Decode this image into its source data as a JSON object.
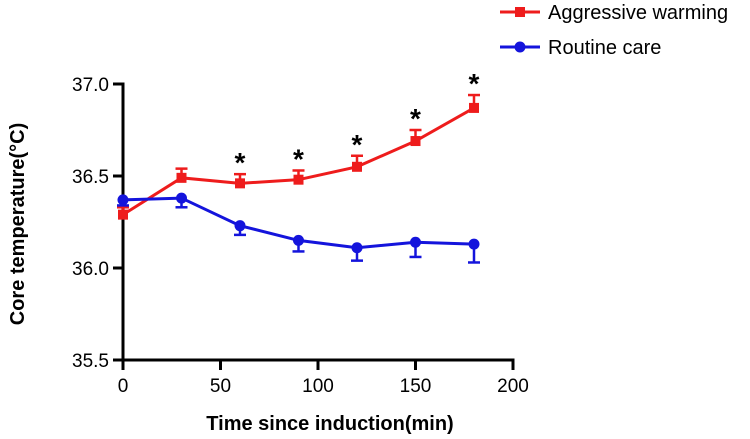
{
  "chart_data": {
    "type": "line",
    "title": "",
    "xlabel": "Time since induction(min)",
    "ylabel": "Core temperature(°C)",
    "xlim": [
      0,
      200
    ],
    "ylim": [
      35.5,
      37.0
    ],
    "x_ticks": [
      "0",
      "50",
      "100",
      "150",
      "200"
    ],
    "y_ticks": [
      "35.5",
      "36.0",
      "36.5",
      "37.0"
    ],
    "x": [
      0,
      30,
      60,
      90,
      120,
      150,
      180
    ],
    "series": [
      {
        "name": "Aggressive warming",
        "color": "#ee1c1c",
        "marker": "square",
        "values": [
          36.29,
          36.49,
          36.46,
          36.48,
          36.55,
          36.69,
          36.87
        ],
        "error": [
          0.04,
          0.05,
          0.05,
          0.05,
          0.06,
          0.06,
          0.07
        ]
      },
      {
        "name": "Routine care",
        "color": "#1414dc",
        "marker": "circle",
        "values": [
          36.37,
          36.38,
          36.23,
          36.15,
          36.11,
          36.14,
          36.13
        ],
        "error": [
          0.03,
          0.05,
          0.05,
          0.06,
          0.07,
          0.08,
          0.1
        ]
      }
    ],
    "annotations": {
      "marker": "*",
      "x": [
        60,
        90,
        120,
        150,
        180
      ]
    },
    "legend_position": "top-right",
    "grid": false
  }
}
